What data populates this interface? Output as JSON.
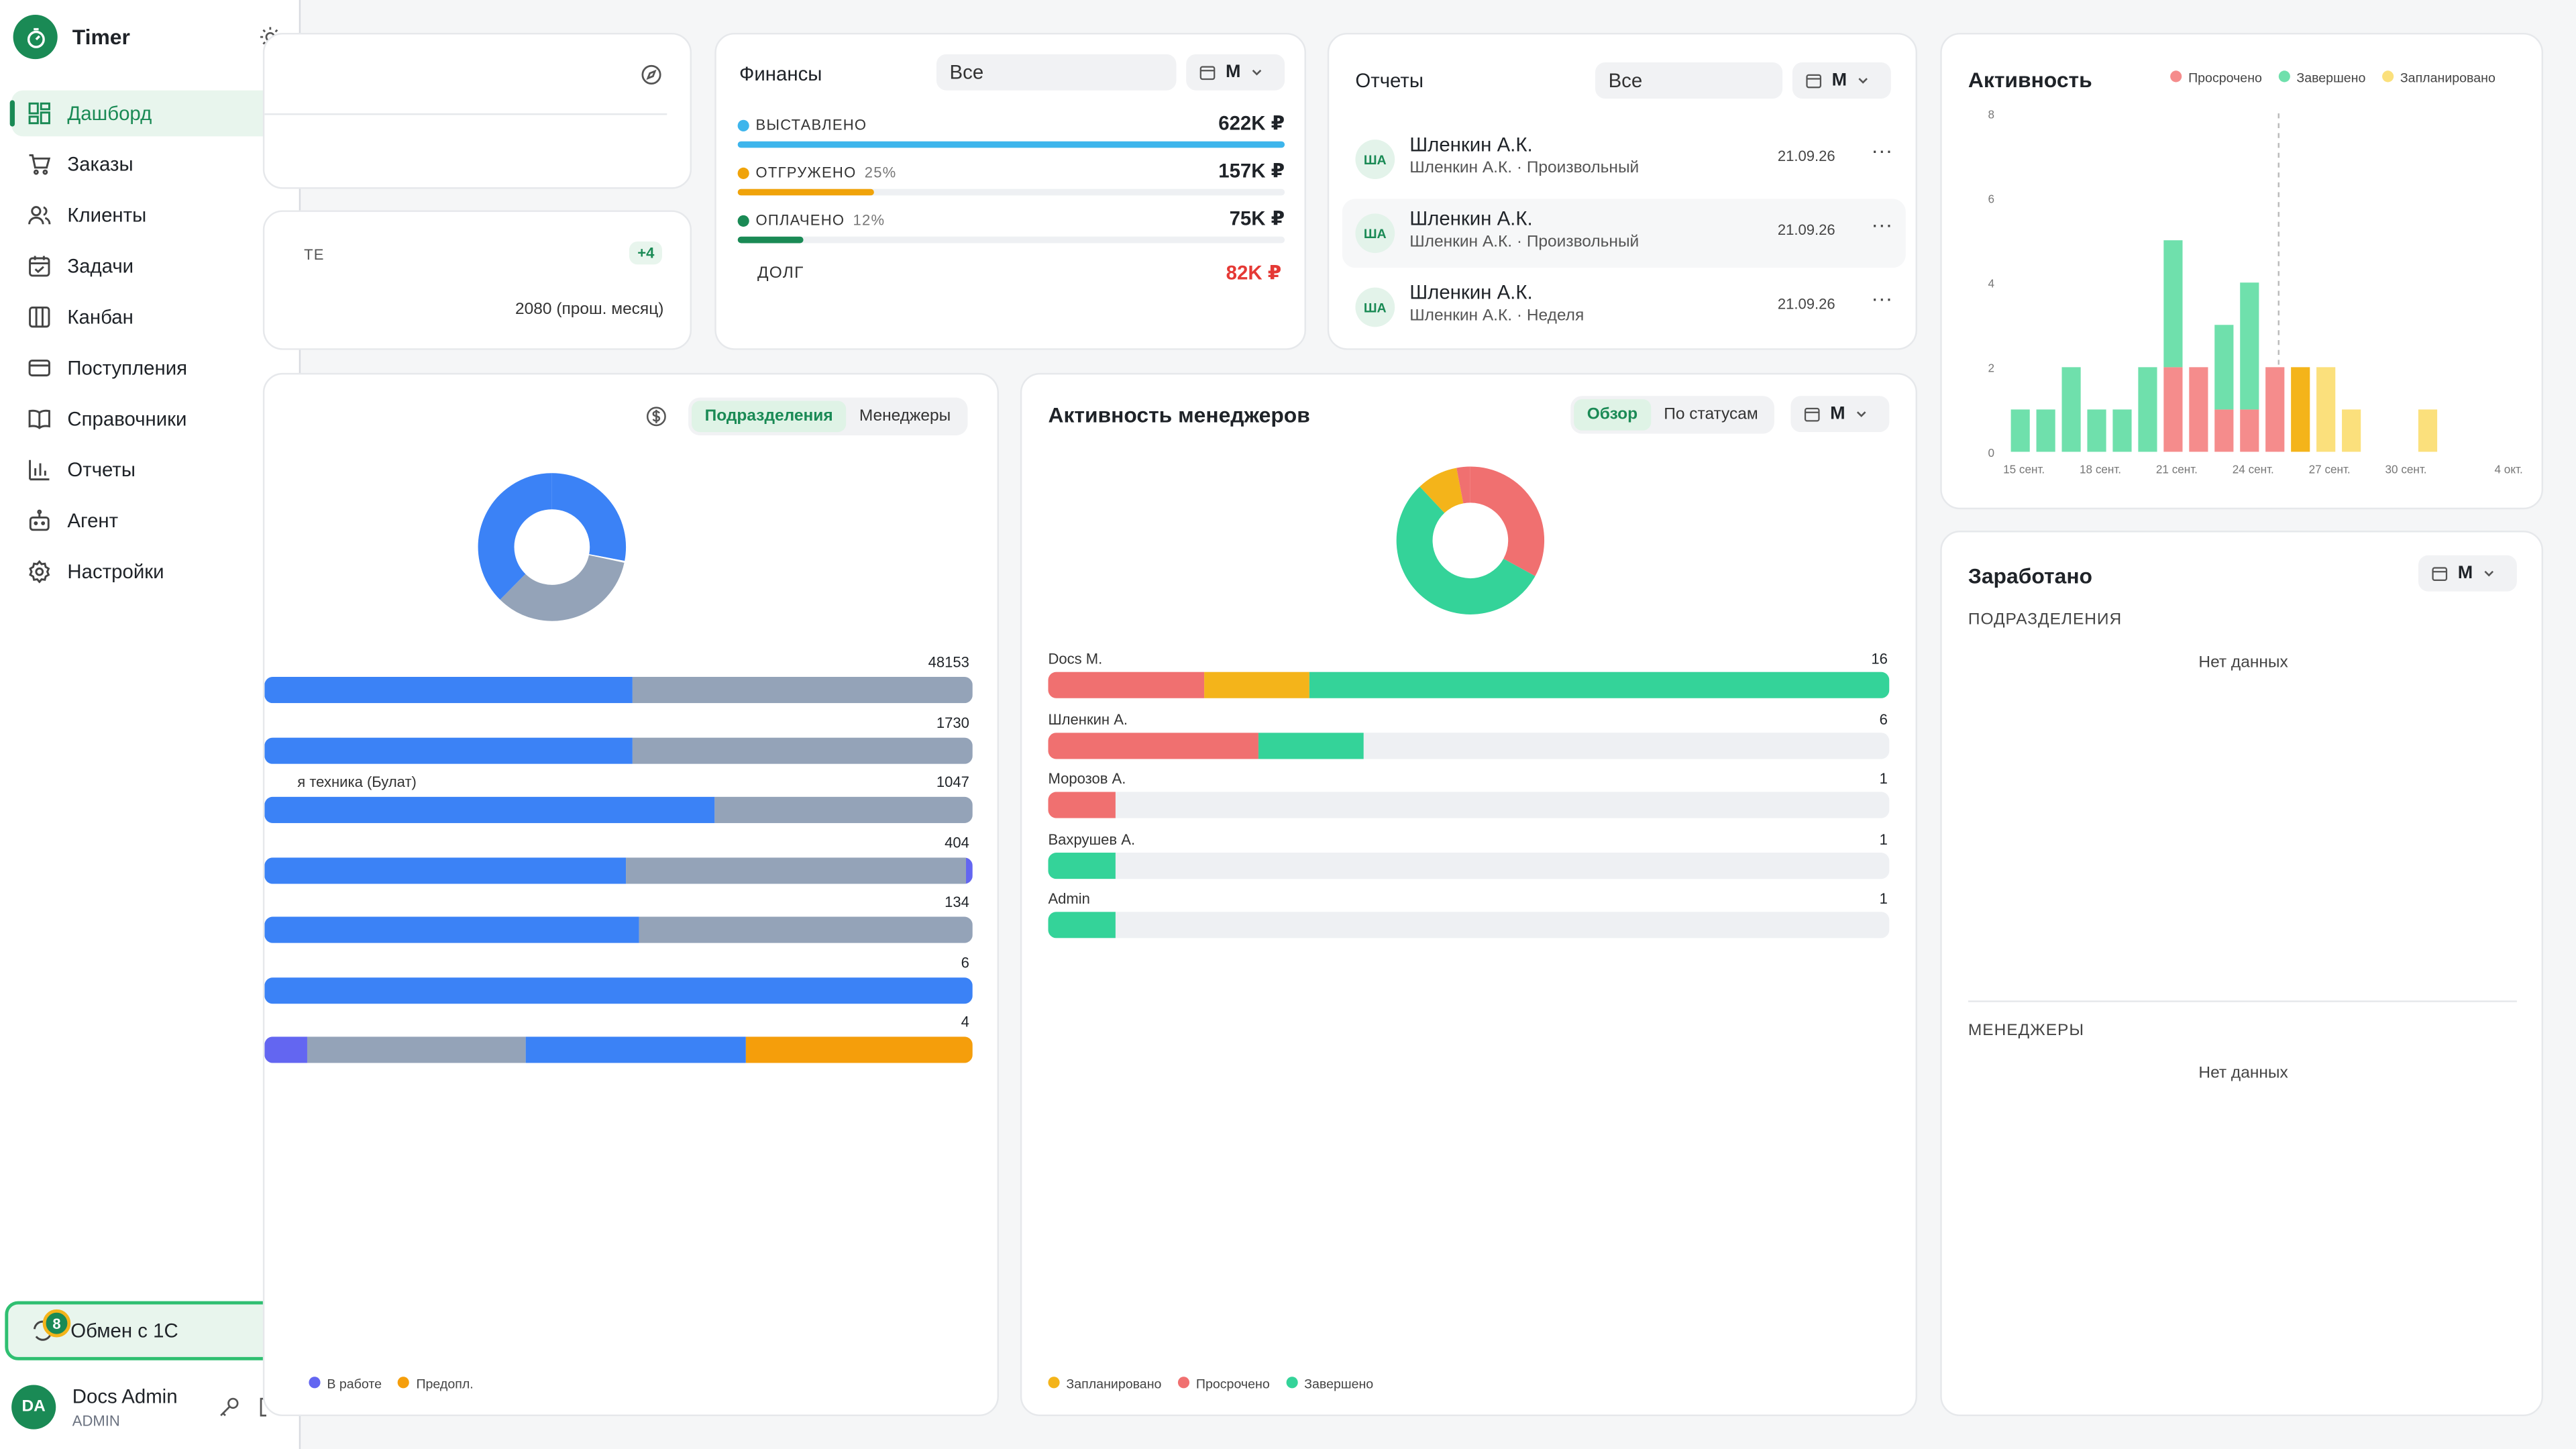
{
  "app": {
    "name": "Timer"
  },
  "sidebar": {
    "items": [
      {
        "label": "Дашборд",
        "icon": "dashboard-icon",
        "active": true
      },
      {
        "label": "Заказы",
        "icon": "cart-icon"
      },
      {
        "label": "Клиенты",
        "icon": "users-icon"
      },
      {
        "label": "Задачи",
        "icon": "calendar-check-icon"
      },
      {
        "label": "Канбан",
        "icon": "columns-icon"
      },
      {
        "label": "Поступления",
        "icon": "card-icon"
      },
      {
        "label": "Справочники",
        "icon": "book-icon"
      },
      {
        "label": "Отчеты",
        "icon": "bar-chart-icon"
      },
      {
        "label": "Агент",
        "icon": "bot-icon"
      },
      {
        "label": "Настройки",
        "icon": "gear-icon"
      }
    ],
    "exchange": {
      "label": "Обмен с 1С",
      "badge": "8"
    },
    "user": {
      "initials": "DA",
      "name": "Docs Admin",
      "role": "ADMIN"
    }
  },
  "partial_card": {
    "tag": "ТЕ",
    "badge": "+4",
    "prev": "2080 (прош. месяц)"
  },
  "finance": {
    "title": "Финансы",
    "filter": "Все",
    "period": "М",
    "rows": [
      {
        "label": "ВЫСТАВЛЕНО",
        "pct": "",
        "value": "622K ₽",
        "fill": 1.0,
        "color": "#3db5ec"
      },
      {
        "label": "ОТГРУЖЕНО",
        "pct": "25%",
        "value": "157K ₽",
        "fill": 0.25,
        "color": "#f0a30a"
      },
      {
        "label": "ОПЛАЧЕНО",
        "pct": "12%",
        "value": "75K ₽",
        "fill": 0.12,
        "color": "#1a8a55"
      }
    ],
    "debt": {
      "label": "ДОЛГ",
      "value": "82K ₽"
    }
  },
  "reports": {
    "title": "Отчеты",
    "filter": "Все",
    "period": "М",
    "items": [
      {
        "initials": "ША",
        "name": "Шленкин А.К.",
        "sub": "Шленкин А.К. · Произвольный",
        "date": "21.09.26"
      },
      {
        "initials": "ША",
        "name": "Шленкин А.К.",
        "sub": "Шленкин А.К. · Произвольный",
        "date": "21.09.26"
      },
      {
        "initials": "ША",
        "name": "Шленкин А.К.",
        "sub": "Шленкин А.К. · Неделя",
        "date": "21.09.26"
      }
    ]
  },
  "activity": {
    "title": "Активность",
    "legend": [
      "Просрочено",
      "Завершено",
      "Запланировано"
    ],
    "colors": {
      "overdue": "#f58c8c",
      "done": "#6fe0ac",
      "planned": "#fbe07c",
      "planned_strong": "#f4b41a"
    },
    "y_ticks": [
      "8",
      "6",
      "4",
      "2",
      "0"
    ],
    "x_ticks": [
      "15 сент.",
      "18 сент.",
      "21 сент.",
      "24 сент.",
      "27 сент.",
      "30 сент.",
      "4 окт."
    ]
  },
  "departments": {
    "tabs": [
      "Подразделения",
      "Менеджеры"
    ],
    "rows": [
      {
        "label": "",
        "value": "48153"
      },
      {
        "label": "я техника (Булат)",
        "value": "1730"
      },
      {
        "label": "",
        "value": "1047"
      },
      {
        "label": "",
        "value": "404"
      },
      {
        "label": "",
        "value": "134"
      },
      {
        "label": "",
        "value": "6"
      },
      {
        "label": "",
        "value": "4"
      }
    ],
    "legend": [
      "В работе",
      "Предопл."
    ]
  },
  "managers": {
    "title": "Активность менеджеров",
    "tabs": [
      "Обзор",
      "По статусам"
    ],
    "period": "М",
    "rows": [
      {
        "label": "Docs M.",
        "value": "16"
      },
      {
        "label": "Шленкин А.",
        "value": "6"
      },
      {
        "label": "Морозов А.",
        "value": "1"
      },
      {
        "label": "Вахрушев А.",
        "value": "1"
      },
      {
        "label": "Admin",
        "value": "1"
      }
    ],
    "legend": [
      "Запланировано",
      "Просрочено",
      "Завершено"
    ]
  },
  "earned": {
    "title": "Заработано",
    "period": "М",
    "sec1": "ПОДРАЗДЕЛЕНИЯ",
    "empty1": "Нет данных",
    "sec2": "МЕНЕДЖЕРЫ",
    "empty2": "Нет данных"
  }
}
